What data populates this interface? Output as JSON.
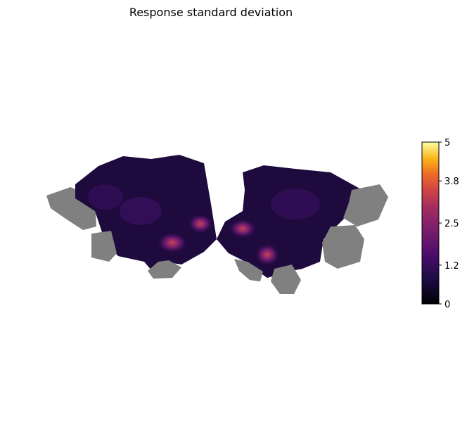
{
  "chart_data": {
    "type": "heatmap",
    "title": "Response standard deviation",
    "description_kind": "cortical flatmap",
    "colormap": "inferno",
    "colorbar": {
      "vmin": 0,
      "vmax": 5,
      "ticks": [
        0,
        1.2,
        2.5,
        3.8,
        5
      ],
      "tick_labels": [
        "0",
        "1.2",
        "2.5",
        "3.8",
        "5"
      ],
      "placement": "right"
    },
    "mask_color": "#808080"
  }
}
